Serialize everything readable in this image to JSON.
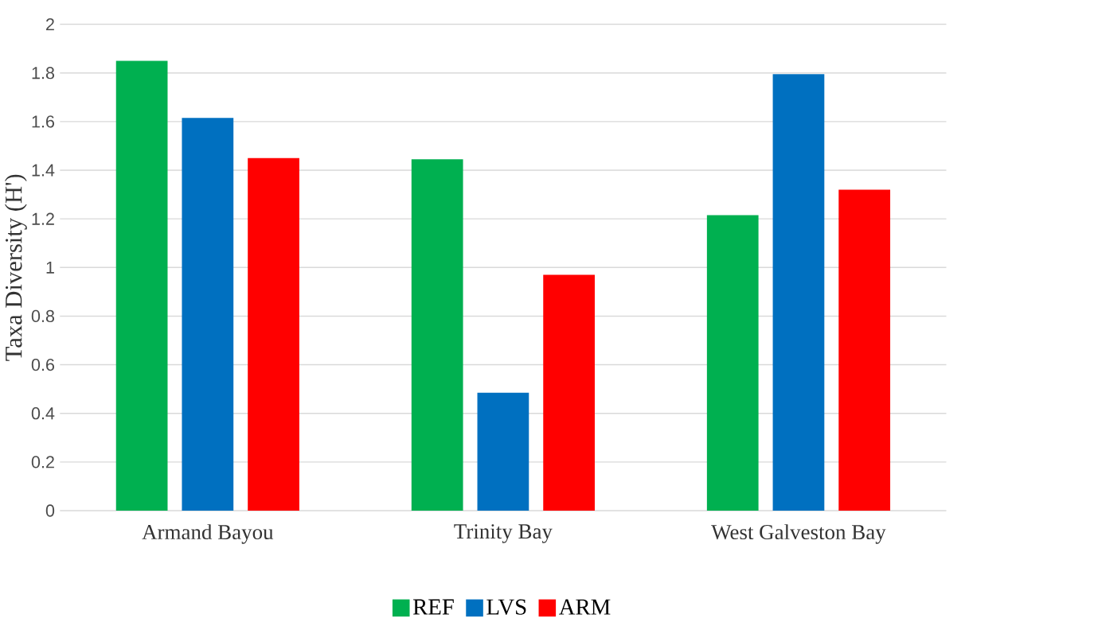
{
  "chart_data": {
    "type": "bar",
    "ylabel": "Taxa Diversity (H')",
    "categories": [
      "Armand Bayou",
      "Trinity Bay",
      "West Galveston Bay"
    ],
    "series": [
      {
        "name": "REF",
        "color": "#00b050",
        "values": [
          1.85,
          1.445,
          1.215
        ]
      },
      {
        "name": "LVS",
        "color": "#0070c0",
        "values": [
          1.615,
          0.485,
          1.795
        ]
      },
      {
        "name": "ARM",
        "color": "#ff0000",
        "values": [
          1.45,
          0.97,
          1.32
        ]
      }
    ],
    "ylim": [
      0,
      2
    ],
    "yticks": [
      0,
      0.2,
      0.4,
      0.6,
      0.8,
      1,
      1.2,
      1.4,
      1.6,
      1.8,
      2
    ],
    "grid": "y",
    "legend": "bottom"
  }
}
